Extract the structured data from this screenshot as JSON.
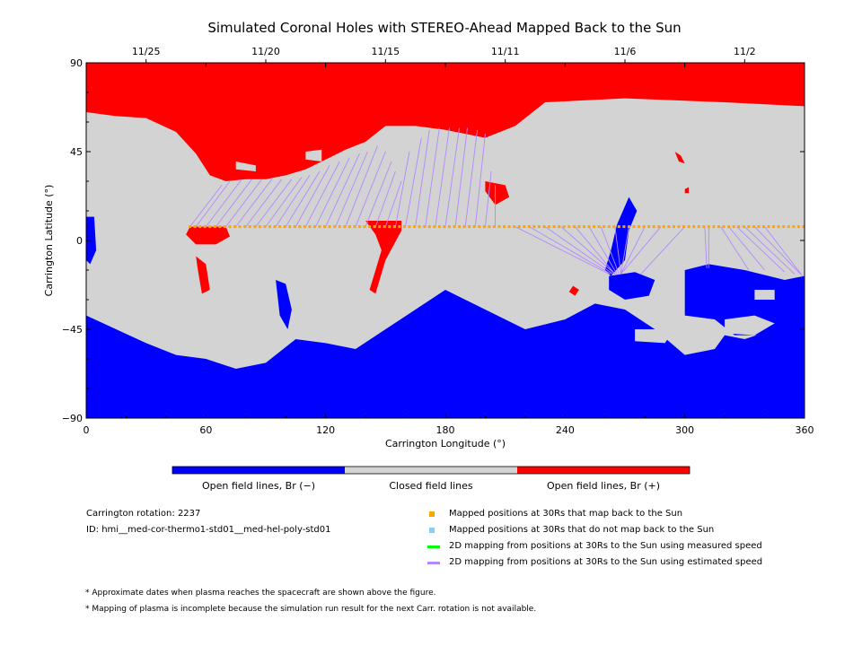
{
  "chart_data": {
    "type": "map",
    "title": "Simulated Coronal Holes with STEREO-Ahead Mapped Back to the Sun",
    "xlabel": "Carrington Longitude (°)",
    "ylabel": "Carrington Latitude (°)",
    "xlim": [
      0,
      360
    ],
    "ylim": [
      -90,
      90
    ],
    "x_ticks": [
      "0",
      "60",
      "120",
      "180",
      "240",
      "300",
      "360"
    ],
    "y_ticks": [
      "90",
      "45",
      "0",
      "-45",
      "-90"
    ],
    "top_axis": {
      "dates": [
        {
          "label": "11/25",
          "lon": 30
        },
        {
          "label": "11/20",
          "lon": 90
        },
        {
          "label": "11/15",
          "lon": 150
        },
        {
          "label": "11/11",
          "lon": 210
        },
        {
          "label": "11/6",
          "lon": 270
        },
        {
          "label": "11/2",
          "lon": 330
        }
      ]
    },
    "colors": {
      "open_negative": "#0000ff",
      "closed": "#d3d3d3",
      "open_positive": "#ff0000",
      "mapped_back": "#ffa500",
      "not_mapped": "#87cefa",
      "measured_speed": "#00ff00",
      "estimated_speed": "#b388ff"
    },
    "mapped_positions": {
      "lat_at_30Rs": 7,
      "lon_start": 52,
      "lon_end": 360,
      "lon_step": 2.5
    },
    "mapping_lines": [
      {
        "from_lon": 52,
        "to_lon": 68,
        "to_lat": 28
      },
      {
        "from_lon": 55,
        "to_lon": 72,
        "to_lat": 30
      },
      {
        "from_lon": 60,
        "to_lon": 78,
        "to_lat": 31
      },
      {
        "from_lon": 65,
        "to_lon": 83,
        "to_lat": 31
      },
      {
        "from_lon": 70,
        "to_lon": 88,
        "to_lat": 31
      },
      {
        "from_lon": 75,
        "to_lon": 93,
        "to_lat": 31
      },
      {
        "from_lon": 80,
        "to_lon": 98,
        "to_lat": 31
      },
      {
        "from_lon": 85,
        "to_lon": 103,
        "to_lat": 31
      },
      {
        "from_lon": 90,
        "to_lon": 108,
        "to_lat": 32
      },
      {
        "from_lon": 95,
        "to_lon": 112,
        "to_lat": 33
      },
      {
        "from_lon": 100,
        "to_lon": 117,
        "to_lat": 35
      },
      {
        "from_lon": 105,
        "to_lon": 122,
        "to_lat": 38
      },
      {
        "from_lon": 110,
        "to_lon": 127,
        "to_lat": 40
      },
      {
        "from_lon": 115,
        "to_lon": 132,
        "to_lat": 42
      },
      {
        "from_lon": 120,
        "to_lon": 137,
        "to_lat": 44
      },
      {
        "from_lon": 125,
        "to_lon": 141,
        "to_lat": 45
      },
      {
        "from_lon": 130,
        "to_lon": 146,
        "to_lat": 48
      },
      {
        "from_lon": 135,
        "to_lon": 150,
        "to_lat": 45
      },
      {
        "from_lon": 140,
        "to_lon": 153,
        "to_lat": 40
      },
      {
        "from_lon": 145,
        "to_lon": 155,
        "to_lat": 35
      },
      {
        "from_lon": 150,
        "to_lon": 158,
        "to_lat": 30
      },
      {
        "from_lon": 155,
        "to_lon": 162,
        "to_lat": 45
      },
      {
        "from_lon": 160,
        "to_lon": 168,
        "to_lat": 52
      },
      {
        "from_lon": 165,
        "to_lon": 172,
        "to_lat": 56
      },
      {
        "from_lon": 170,
        "to_lon": 177,
        "to_lat": 57
      },
      {
        "from_lon": 175,
        "to_lon": 182,
        "to_lat": 57
      },
      {
        "from_lon": 180,
        "to_lon": 187,
        "to_lat": 57
      },
      {
        "from_lon": 185,
        "to_lon": 191,
        "to_lat": 57
      },
      {
        "from_lon": 190,
        "to_lon": 196,
        "to_lat": 56
      },
      {
        "from_lon": 195,
        "to_lon": 200,
        "to_lat": 54
      },
      {
        "from_lon": 200,
        "to_lon": 203,
        "to_lat": 35
      },
      {
        "from_lon": 205,
        "to_lon": 205,
        "to_lat": 28
      },
      {
        "from_lon": 215,
        "to_lon": 262,
        "to_lat": -17
      },
      {
        "from_lon": 222,
        "to_lon": 263,
        "to_lat": -17
      },
      {
        "from_lon": 230,
        "to_lon": 264,
        "to_lat": -17
      },
      {
        "from_lon": 238,
        "to_lon": 265,
        "to_lat": -17
      },
      {
        "from_lon": 245,
        "to_lon": 265,
        "to_lat": -17
      },
      {
        "from_lon": 252,
        "to_lon": 266,
        "to_lat": -17
      },
      {
        "from_lon": 258,
        "to_lon": 267,
        "to_lat": -17
      },
      {
        "from_lon": 265,
        "to_lon": 268,
        "to_lat": -17
      },
      {
        "from_lon": 272,
        "to_lon": 268,
        "to_lat": -17
      },
      {
        "from_lon": 280,
        "to_lon": 268,
        "to_lat": -17
      },
      {
        "from_lon": 288,
        "to_lon": 268,
        "to_lat": -17
      },
      {
        "from_lon": 300,
        "to_lon": 278,
        "to_lat": -17
      },
      {
        "from_lon": 310,
        "to_lon": 311,
        "to_lat": -14
      },
      {
        "from_lon": 312,
        "to_lon": 312,
        "to_lat": -14
      },
      {
        "from_lon": 318,
        "to_lon": 332,
        "to_lat": -15
      },
      {
        "from_lon": 322,
        "to_lon": 340,
        "to_lat": -15
      },
      {
        "from_lon": 326,
        "to_lon": 350,
        "to_lat": -16
      },
      {
        "from_lon": 330,
        "to_lon": 355,
        "to_lat": -17
      },
      {
        "from_lon": 335,
        "to_lon": 358,
        "to_lat": -17
      },
      {
        "from_lon": 340,
        "to_lon": 359,
        "to_lat": -18
      }
    ],
    "regions": {
      "north_pos_cap": [
        [
          0,
          90
        ],
        [
          360,
          90
        ],
        [
          360,
          68
        ],
        [
          320,
          70
        ],
        [
          270,
          72
        ],
        [
          230,
          70
        ],
        [
          215,
          58
        ],
        [
          200,
          52
        ],
        [
          180,
          56
        ],
        [
          165,
          58
        ],
        [
          150,
          58
        ],
        [
          140,
          50
        ],
        [
          130,
          46
        ],
        [
          122,
          42
        ],
        [
          110,
          36
        ],
        [
          100,
          33
        ],
        [
          90,
          31
        ],
        [
          80,
          31
        ],
        [
          70,
          30
        ],
        [
          62,
          33
        ],
        [
          55,
          44
        ],
        [
          45,
          55
        ],
        [
          30,
          62
        ],
        [
          15,
          63
        ],
        [
          0,
          65
        ]
      ],
      "south_neg_cap": [
        [
          0,
          -90
        ],
        [
          360,
          -90
        ],
        [
          360,
          -50
        ],
        [
          345,
          -45
        ],
        [
          330,
          -50
        ],
        [
          320,
          -48
        ],
        [
          315,
          -55
        ],
        [
          300,
          -58
        ],
        [
          285,
          -45
        ],
        [
          270,
          -35
        ],
        [
          255,
          -32
        ],
        [
          240,
          -40
        ],
        [
          220,
          -45
        ],
        [
          200,
          -35
        ],
        [
          180,
          -25
        ],
        [
          165,
          -35
        ],
        [
          150,
          -45
        ],
        [
          135,
          -55
        ],
        [
          120,
          -52
        ],
        [
          105,
          -50
        ],
        [
          90,
          -62
        ],
        [
          75,
          -65
        ],
        [
          60,
          -60
        ],
        [
          45,
          -58
        ],
        [
          30,
          -52
        ],
        [
          15,
          -45
        ],
        [
          0,
          -38
        ]
      ],
      "neg_pocket_south": [
        [
          300,
          -15
        ],
        [
          312,
          -12
        ],
        [
          330,
          -15
        ],
        [
          350,
          -20
        ],
        [
          360,
          -18
        ],
        [
          360,
          -50
        ],
        [
          340,
          -48
        ],
        [
          325,
          -48
        ],
        [
          315,
          -40
        ],
        [
          300,
          -38
        ]
      ],
      "neg_equator": [
        [
          263,
          -18
        ],
        [
          270,
          -10
        ],
        [
          272,
          5
        ],
        [
          276,
          15
        ],
        [
          272,
          22
        ],
        [
          266,
          8
        ],
        [
          263,
          -5
        ],
        [
          260,
          -15
        ]
      ],
      "neg_blob_center": [
        [
          262,
          -18
        ],
        [
          275,
          -16
        ],
        [
          285,
          -20
        ],
        [
          282,
          -28
        ],
        [
          270,
          -30
        ],
        [
          262,
          -25
        ]
      ],
      "neg_left_edge": [
        [
          0,
          12
        ],
        [
          4,
          12
        ],
        [
          5,
          -5
        ],
        [
          2,
          -12
        ],
        [
          0,
          -10
        ]
      ],
      "neg_small_1": [
        [
          95,
          -20
        ],
        [
          100,
          -22
        ],
        [
          103,
          -35
        ],
        [
          101,
          -45
        ],
        [
          97,
          -38
        ]
      ],
      "pos_hole_1": [
        [
          52,
          7
        ],
        [
          70,
          7
        ],
        [
          72,
          2
        ],
        [
          65,
          -2
        ],
        [
          55,
          -2
        ],
        [
          50,
          3
        ]
      ],
      "pos_hole_2": [
        [
          55,
          -8
        ],
        [
          60,
          -12
        ],
        [
          62,
          -25
        ],
        [
          58,
          -27
        ],
        [
          56,
          -15
        ]
      ],
      "pos_hole_3": [
        [
          140,
          10
        ],
        [
          158,
          10
        ],
        [
          158,
          5
        ],
        [
          150,
          -10
        ],
        [
          145,
          -27
        ],
        [
          142,
          -25
        ],
        [
          148,
          -5
        ],
        [
          145,
          3
        ]
      ],
      "pos_hole_4": [
        [
          200,
          30
        ],
        [
          210,
          28
        ],
        [
          212,
          22
        ],
        [
          205,
          18
        ],
        [
          200,
          25
        ]
      ],
      "pos_hole_5": [
        [
          244,
          -23
        ],
        [
          247,
          -25
        ],
        [
          245,
          -28
        ],
        [
          242,
          -26
        ]
      ],
      "pos_hole_6": [
        [
          295,
          45
        ],
        [
          298,
          43
        ],
        [
          300,
          39
        ],
        [
          297,
          40
        ]
      ],
      "pos_hole_7": [
        [
          300,
          26
        ],
        [
          302,
          27
        ],
        [
          302,
          24
        ],
        [
          300,
          24
        ]
      ],
      "closed_island_1": [
        [
          75,
          40
        ],
        [
          85,
          38
        ],
        [
          85,
          35
        ],
        [
          75,
          36
        ]
      ],
      "closed_island_2": [
        [
          110,
          45
        ],
        [
          118,
          46
        ],
        [
          118,
          40
        ],
        [
          110,
          41
        ]
      ],
      "closed_island_3": [
        [
          135,
          45
        ],
        [
          140,
          47
        ],
        [
          140,
          42
        ],
        [
          135,
          42
        ]
      ],
      "closed_island_4": [
        [
          178,
          20
        ],
        [
          185,
          22
        ],
        [
          188,
          18
        ],
        [
          182,
          16
        ]
      ],
      "closed_island_5": [
        [
          335,
          -25
        ],
        [
          345,
          -25
        ],
        [
          345,
          -30
        ],
        [
          335,
          -30
        ]
      ],
      "closed_island_6": [
        [
          320,
          -40
        ],
        [
          335,
          -38
        ],
        [
          345,
          -42
        ],
        [
          335,
          -48
        ],
        [
          320,
          -47
        ]
      ],
      "closed_island_7": [
        [
          275,
          -45
        ],
        [
          295,
          -45
        ],
        [
          290,
          -52
        ],
        [
          275,
          -51
        ]
      ]
    },
    "colorbar": {
      "labels": [
        "Open field lines, Br (−)",
        "Closed field lines",
        "Open field lines, Br (+)"
      ]
    },
    "info": {
      "carrington": "Carrington rotation: 2237",
      "id": "ID: hmi__med-cor-thermo1-std01__med-hel-poly-std01"
    },
    "legend": [
      {
        "label": "Mapped positions at 30Rs that map back to the Sun",
        "color": "#ffa500",
        "kind": "square"
      },
      {
        "label": "Mapped positions at 30Rs that do not map back to the Sun",
        "color": "#87cefa",
        "kind": "square"
      },
      {
        "label": "2D mapping from positions at 30Rs to the Sun using measured speed",
        "color": "#00ff00",
        "kind": "line"
      },
      {
        "label": "2D mapping from positions at 30Rs to the Sun using estimated speed",
        "color": "#b388ff",
        "kind": "line"
      }
    ],
    "notes": [
      "* Approximate dates when plasma reaches the spacecraft are shown above the figure.",
      "* Mapping of plasma is incomplete because the simulation run result for the next Carr. rotation is not available."
    ]
  }
}
